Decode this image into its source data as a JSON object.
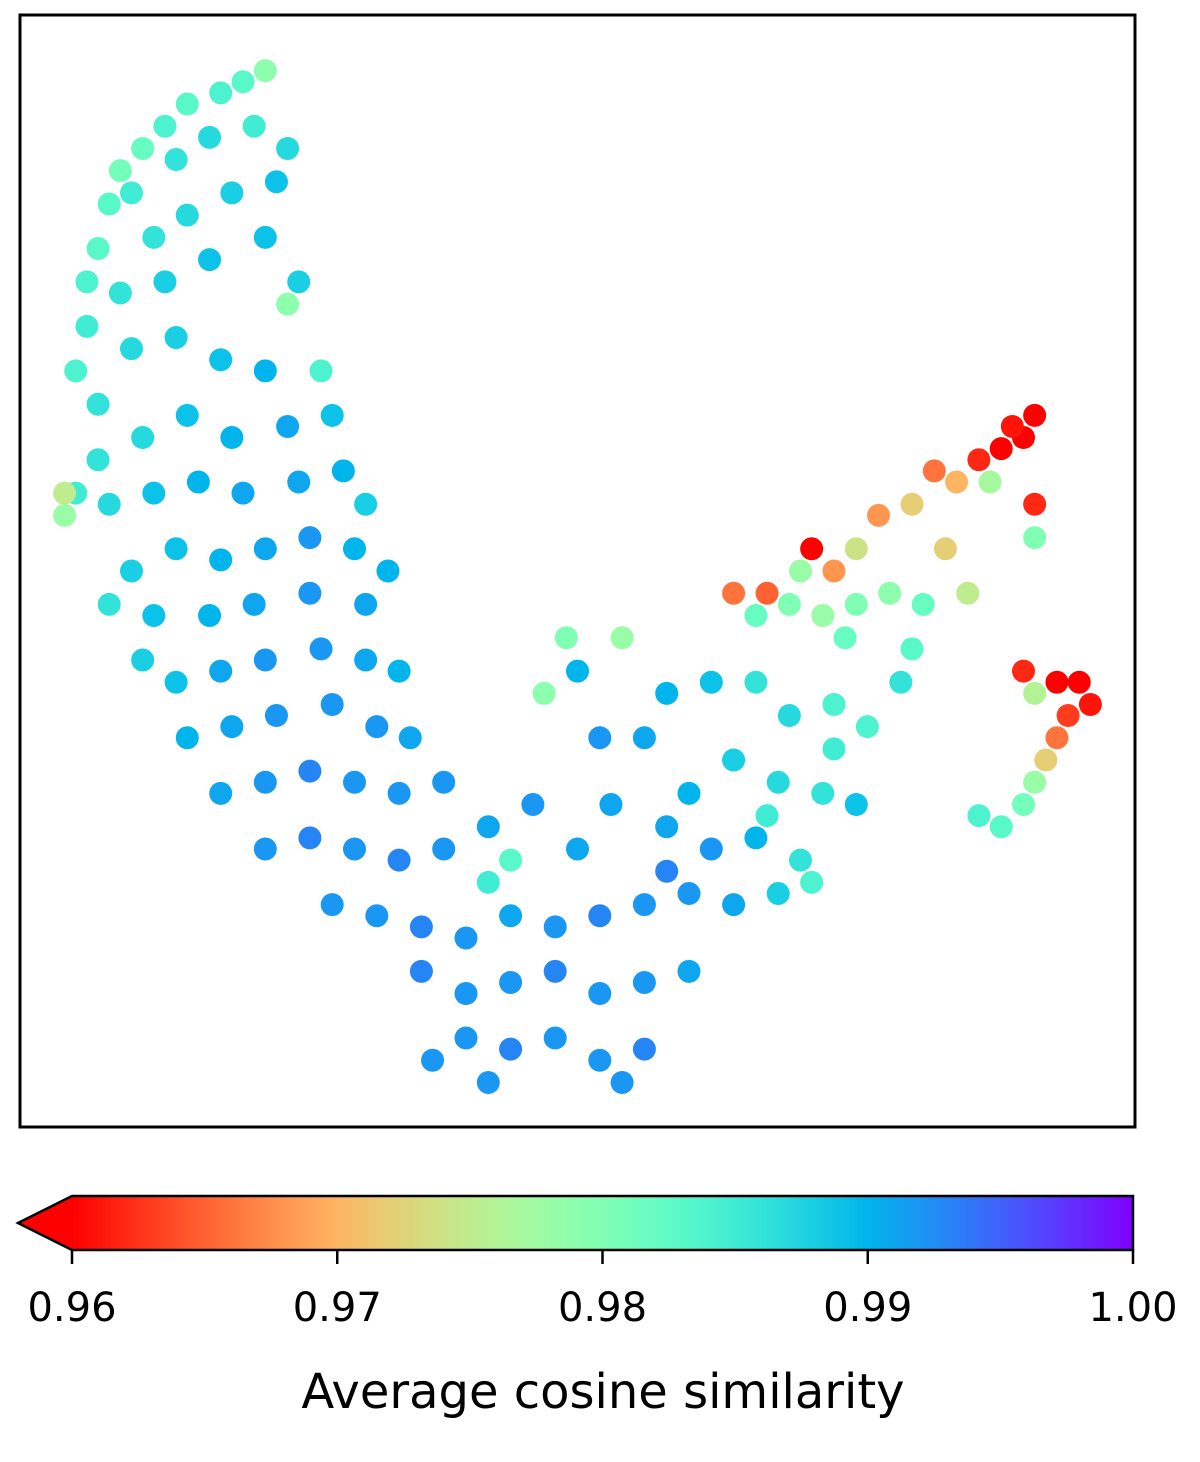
{
  "chart_data": {
    "type": "scatter",
    "xlim": [
      0,
      100
    ],
    "ylim": [
      0,
      100
    ],
    "x": [
      22,
      20,
      18,
      15,
      13,
      11,
      9,
      8,
      10,
      14,
      17,
      21,
      24,
      23,
      19,
      15,
      12,
      7,
      6,
      9,
      13,
      17,
      22,
      25,
      24,
      6,
      5,
      7,
      10,
      14,
      18,
      22,
      27,
      28,
      24,
      19,
      15,
      11,
      7,
      5,
      4,
      8,
      12,
      16,
      20,
      25,
      29,
      31,
      30,
      26,
      22,
      18,
      14,
      10,
      8,
      12,
      17,
      21,
      26,
      31,
      33,
      11,
      14,
      18,
      22,
      27,
      31,
      34,
      15,
      19,
      23,
      28,
      32,
      35,
      18,
      22,
      26,
      30,
      34,
      38,
      22,
      26,
      30,
      34,
      38,
      42,
      28,
      32,
      36,
      40,
      44,
      48,
      52,
      56,
      60,
      64,
      68,
      36,
      40,
      44,
      48,
      52,
      56,
      60,
      40,
      44,
      48,
      52,
      56,
      37,
      42,
      54,
      44,
      42,
      50,
      46,
      53,
      58,
      62,
      66,
      70,
      71,
      47,
      50,
      54,
      49,
      58,
      62,
      66,
      69,
      73,
      76,
      60,
      64,
      68,
      72,
      75,
      73,
      67,
      56,
      52,
      58,
      66,
      69,
      72,
      75,
      78,
      81,
      74,
      80,
      79,
      64,
      67,
      70,
      73,
      75,
      77,
      80,
      82,
      84,
      86,
      88,
      90,
      91,
      89,
      87,
      91,
      91,
      85,
      83,
      71,
      90,
      95,
      96,
      94,
      93,
      92,
      91,
      90,
      88,
      86,
      91,
      93,
      4
    ],
    "y": [
      95,
      94,
      93,
      92,
      90,
      88,
      86,
      83,
      84,
      87,
      89,
      90,
      88,
      85,
      84,
      82,
      80,
      79,
      76,
      75,
      76,
      78,
      80,
      76,
      74,
      72,
      68,
      65,
      70,
      71,
      69,
      68,
      68,
      64,
      63,
      62,
      64,
      62,
      60,
      57,
      55,
      56,
      57,
      58,
      57,
      58,
      59,
      56,
      52,
      53,
      52,
      51,
      52,
      50,
      47,
      46,
      46,
      47,
      48,
      47,
      50,
      42,
      40,
      41,
      42,
      43,
      42,
      41,
      35,
      36,
      37,
      38,
      36,
      35,
      30,
      31,
      32,
      31,
      30,
      31,
      25,
      26,
      25,
      24,
      25,
      27,
      20,
      19,
      18,
      17,
      19,
      18,
      19,
      20,
      21,
      20,
      21,
      14,
      12,
      13,
      14,
      12,
      13,
      14,
      8,
      7,
      8,
      6,
      7,
      6,
      4,
      4,
      24,
      22,
      25,
      29,
      29,
      27,
      25,
      26,
      24,
      22,
      39,
      41,
      44,
      44,
      39,
      40,
      40,
      37,
      38,
      36,
      30,
      33,
      31,
      30,
      29,
      34,
      28,
      35,
      35,
      23,
      46,
      47,
      46,
      47,
      48,
      47,
      44,
      43,
      40,
      48,
      48,
      50,
      50,
      52,
      55,
      56,
      59,
      58,
      60,
      61,
      62,
      64,
      63,
      58,
      53,
      56,
      48,
      52,
      52,
      41,
      40,
      38,
      37,
      35,
      33,
      31,
      29,
      27,
      28,
      39,
      40,
      57
    ],
    "values": [
      0.979,
      0.983,
      0.984,
      0.983,
      0.984,
      0.982,
      0.981,
      0.983,
      0.985,
      0.986,
      0.987,
      0.985,
      0.987,
      0.989,
      0.988,
      0.987,
      0.986,
      0.983,
      0.984,
      0.986,
      0.988,
      0.989,
      0.989,
      0.988,
      0.979,
      0.985,
      0.984,
      0.986,
      0.987,
      0.988,
      0.989,
      0.99,
      0.984,
      0.989,
      0.991,
      0.99,
      0.989,
      0.987,
      0.986,
      0.985,
      0.978,
      0.987,
      0.989,
      0.99,
      0.991,
      0.991,
      0.99,
      0.988,
      0.99,
      0.992,
      0.991,
      0.99,
      0.989,
      0.988,
      0.986,
      0.989,
      0.99,
      0.991,
      0.992,
      0.991,
      0.99,
      0.988,
      0.989,
      0.991,
      0.992,
      0.992,
      0.991,
      0.99,
      0.99,
      0.991,
      0.992,
      0.992,
      0.992,
      0.991,
      0.991,
      0.992,
      0.993,
      0.992,
      0.992,
      0.992,
      0.992,
      0.993,
      0.992,
      0.993,
      0.992,
      0.991,
      0.992,
      0.992,
      0.993,
      0.992,
      0.991,
      0.992,
      0.993,
      0.992,
      0.992,
      0.991,
      0.988,
      0.993,
      0.992,
      0.992,
      0.993,
      0.992,
      0.992,
      0.991,
      0.992,
      0.993,
      0.992,
      0.992,
      0.993,
      0.992,
      0.992,
      0.992,
      0.983,
      0.985,
      0.991,
      0.992,
      0.991,
      0.991,
      0.992,
      0.99,
      0.986,
      0.984,
      0.979,
      0.99,
      0.978,
      0.98,
      0.99,
      0.989,
      0.986,
      0.987,
      0.984,
      0.984,
      0.99,
      0.988,
      0.987,
      0.986,
      0.989,
      0.985,
      0.985,
      0.991,
      0.992,
      0.993,
      0.982,
      0.98,
      0.978,
      0.98,
      0.979,
      0.982,
      0.982,
      0.983,
      0.986,
      0.966,
      0.965,
      0.978,
      0.968,
      0.974,
      0.968,
      0.972,
      0.966,
      0.97,
      0.962,
      0.96,
      0.96,
      0.96,
      0.961,
      0.977,
      0.98,
      0.962,
      0.975,
      0.972,
      0.96,
      0.962,
      0.96,
      0.961,
      0.963,
      0.966,
      0.972,
      0.978,
      0.981,
      0.983,
      0.984,
      0.976,
      0.96,
      0.975
    ],
    "colormap": "rainbow_r",
    "colorbar": {
      "label": "Average cosine similarity",
      "lim": [
        0.96,
        1.0
      ],
      "extend": "min",
      "ticks": [
        0.96,
        0.97,
        0.98,
        0.99,
        {
          "value": 1.0,
          "label": "1.00"
        }
      ]
    }
  }
}
